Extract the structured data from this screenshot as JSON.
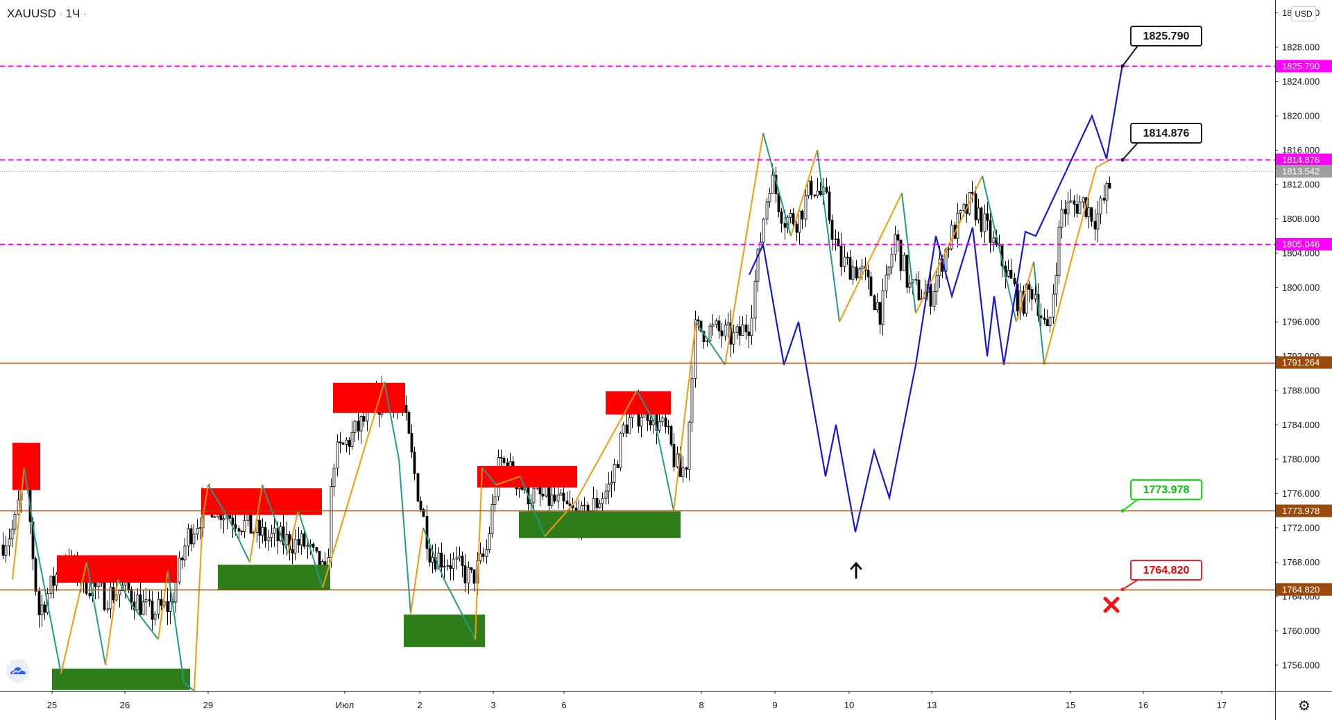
{
  "header": {
    "symbol": "XAUUSD",
    "timeframe": "1Ч"
  },
  "axis": {
    "currency": "USD"
  },
  "chart_data": {
    "type": "candlestick",
    "ylim": [
      1753,
      1833.5
    ],
    "y_ticks": [
      {
        "value": 1832,
        "label": "1832.000"
      },
      {
        "value": 1828,
        "label": "1828.000"
      },
      {
        "value": 1824,
        "label": "1824.000"
      },
      {
        "value": 1820,
        "label": "1820.000"
      },
      {
        "value": 1816,
        "label": "1816.000"
      },
      {
        "value": 1812,
        "label": "1812.000"
      },
      {
        "value": 1808,
        "label": "1808.000"
      },
      {
        "value": 1804,
        "label": "1804.000"
      },
      {
        "value": 1800,
        "label": "1800.000"
      },
      {
        "value": 1796,
        "label": "1796.000"
      },
      {
        "value": 1792,
        "label": "1792.000"
      },
      {
        "value": 1788,
        "label": "1788.000"
      },
      {
        "value": 1784,
        "label": "1784.000"
      },
      {
        "value": 1780,
        "label": "1780.000"
      },
      {
        "value": 1776,
        "label": "1776.000"
      },
      {
        "value": 1772,
        "label": "1772.000"
      },
      {
        "value": 1768,
        "label": "1768.000"
      },
      {
        "value": 1764,
        "label": "1764.000"
      },
      {
        "value": 1760,
        "label": "1760.000"
      },
      {
        "value": 1756,
        "label": "1756.000"
      }
    ],
    "x_ticks": [
      "25",
      "26",
      "29",
      "Июл",
      "2",
      "3",
      "6",
      "8",
      "9",
      "10",
      "13",
      "15",
      "16",
      "17"
    ],
    "price_labels": [
      {
        "text": "1825.790",
        "value": 1825.79,
        "color": "#ff00ff"
      },
      {
        "text": "1814.876",
        "value": 1814.876,
        "color": "#ff00ff"
      },
      {
        "text": "1813.542",
        "value": 1813.542,
        "color": "#9e9e9e"
      },
      {
        "text": "1805.046",
        "value": 1805.046,
        "color": "#ff00ff"
      },
      {
        "text": "1791.264",
        "value": 1791.264,
        "color": "#9c4a0c"
      },
      {
        "text": "1773.978",
        "value": 1773.978,
        "color": "#9c4a0c"
      },
      {
        "text": "1764.820",
        "value": 1764.82,
        "color": "#9c4a0c"
      }
    ],
    "horizontal_levels": [
      {
        "value": 1825.79,
        "style": "dashed",
        "color": "#ff00ff"
      },
      {
        "value": 1814.876,
        "style": "dashed",
        "color": "#ff00ff"
      },
      {
        "value": 1813.542,
        "style": "dotted",
        "color": "#9e9e9e"
      },
      {
        "value": 1805.046,
        "style": "dashed",
        "color": "#ff00ff"
      },
      {
        "value": 1791.264,
        "style": "solid",
        "color": "#9c4a0c"
      },
      {
        "value": 1773.978,
        "style": "solid",
        "color": "#9c4a0c"
      },
      {
        "value": 1764.82,
        "style": "solid",
        "color": "#9c4a0c"
      }
    ],
    "callouts": [
      {
        "text": "1825.790",
        "value": 1825.79,
        "border": "#131722",
        "color": "#131722"
      },
      {
        "text": "1814.876",
        "value": 1814.876,
        "border": "#131722",
        "color": "#131722"
      },
      {
        "text": "1773.978",
        "value": 1773.978,
        "border": "#00e600",
        "color": "#00c800"
      },
      {
        "text": "1764.820",
        "value": 1764.82,
        "border": "#ff1a1a",
        "color": "#e60000"
      }
    ],
    "last_close": 1813.542
  }
}
